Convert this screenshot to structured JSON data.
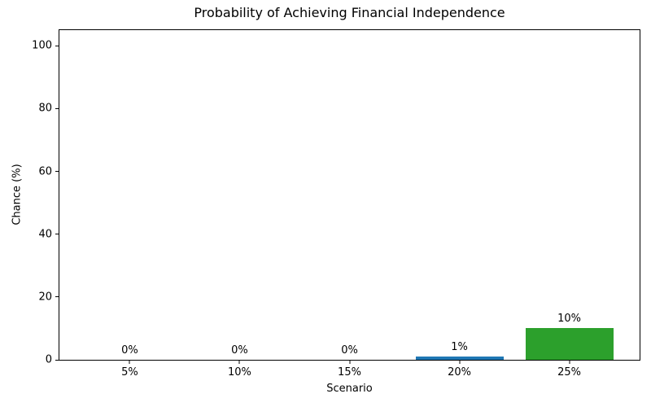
{
  "chart_data": {
    "type": "bar",
    "title": "Probability of Achieving Financial Independence",
    "xlabel": "Scenario",
    "ylabel": "Chance (%)",
    "categories": [
      "5%",
      "10%",
      "15%",
      "20%",
      "25%"
    ],
    "values": [
      0,
      0,
      0,
      1,
      10
    ],
    "bar_labels": [
      "0%",
      "0%",
      "0%",
      "1%",
      "10%"
    ],
    "bar_colors": [
      "#1f77b4",
      "#1f77b4",
      "#1f77b4",
      "#1f77b4",
      "#2ca02c"
    ],
    "yticks": [
      0,
      20,
      40,
      60,
      80,
      100
    ],
    "ylim": [
      0,
      105
    ],
    "xlim": [
      -0.64,
      4.64
    ],
    "bar_width": 0.8,
    "grid": false,
    "legend": null,
    "frame_color": "#000000",
    "background_color": "#ffffff"
  }
}
